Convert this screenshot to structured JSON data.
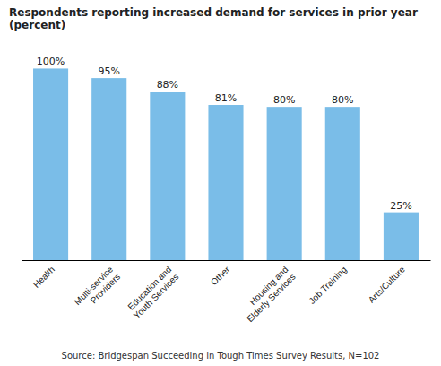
{
  "chart_data": {
    "type": "bar",
    "title": "Respondents reporting increased demand for services in prior year (percent)",
    "categories": [
      "Health",
      "Multi-service\nProviders",
      "Education and\nYouth Services",
      "Other",
      "Housing and\nElderly Services",
      "Job Training",
      "Arts/Culture"
    ],
    "values": [
      100,
      95,
      88,
      81,
      80,
      80,
      25
    ],
    "value_labels": [
      "100%",
      "95%",
      "88%",
      "81%",
      "80%",
      "80%",
      "25%"
    ],
    "data_labels": true,
    "color": "#7ABDE8",
    "ylim": [
      0,
      115
    ],
    "grid": false,
    "tick_labels": "x",
    "annotations": [
      "Source: Bridgespan Succeeding in Tough Times Survey Results, N=102"
    ]
  }
}
